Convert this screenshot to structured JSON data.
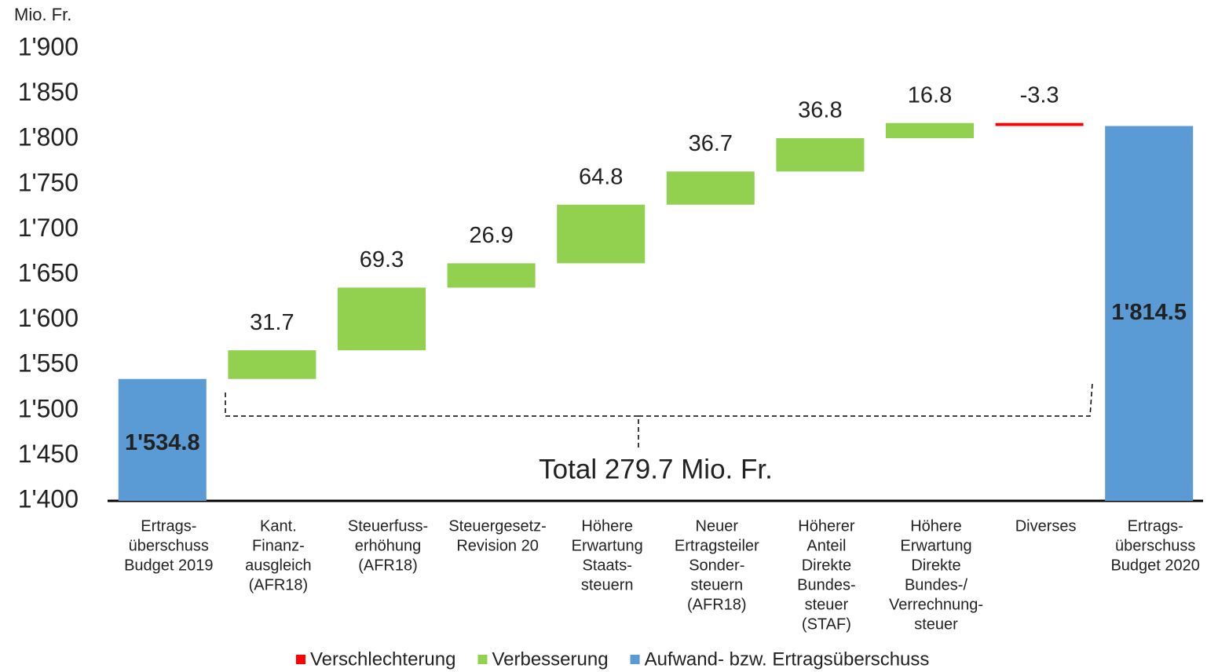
{
  "chart_data": {
    "type": "waterfall",
    "y_unit": "Mio. Fr.",
    "categories": [
      [
        "Ertrags-",
        "überschuss",
        "Budget 2019"
      ],
      [
        "Kant.",
        "Finanz-",
        "ausgleich",
        "(AFR18)"
      ],
      [
        "Steuerfuss-",
        "erhöhung",
        "(AFR18)"
      ],
      [
        "Steuergesetz-",
        "Revision 20"
      ],
      [
        "Höhere",
        "Erwartung",
        "Staats-",
        "steuern"
      ],
      [
        "Neuer",
        "Ertragsteiler",
        "Sonder-",
        "steuern",
        "(AFR18)"
      ],
      [
        "Höherer",
        "Anteil",
        "Direkte",
        "Bundes-",
        "steuer",
        "(STAF)"
      ],
      [
        "Höhere",
        "Erwartung",
        "Direkte",
        "Bundes-/",
        "Verrechnung-",
        "steuer"
      ],
      [
        "Diverses"
      ],
      [
        "Ertrags-",
        "überschuss",
        "Budget 2020"
      ]
    ],
    "values": [
      1534.8,
      31.7,
      69.3,
      26.9,
      64.8,
      36.7,
      36.8,
      16.8,
      -3.3,
      1814.5
    ],
    "value_labels": [
      "1'534.8",
      "31.7",
      "69.3",
      "26.9",
      "64.8",
      "36.7",
      "36.8",
      "16.8",
      "-3.3",
      "1'814.5"
    ],
    "legend": [
      {
        "name": "Verschlechterung",
        "color": "#ff0000"
      },
      {
        "name": "Verbesserung",
        "color": "#92d050"
      },
      {
        "name": "Aufwand- bzw. Ertragsüberschuss",
        "color": "#5b9bd5"
      }
    ],
    "annotation": "Total 279.7 Mio. Fr.",
    "ylim": [
      1400,
      1900
    ],
    "yticks": [
      {
        "value": 1400,
        "label": "1'400"
      },
      {
        "value": 1450,
        "label": "1'450"
      },
      {
        "value": 1500,
        "label": "1'500"
      },
      {
        "value": 1550,
        "label": "1'550"
      },
      {
        "value": 1600,
        "label": "1'600"
      },
      {
        "value": 1650,
        "label": "1'650"
      },
      {
        "value": 1700,
        "label": "1'700"
      },
      {
        "value": 1750,
        "label": "1'750"
      },
      {
        "value": 1800,
        "label": "1'800"
      },
      {
        "value": 1850,
        "label": "1'850"
      },
      {
        "value": 1900,
        "label": "1'900"
      }
    ],
    "grid": false,
    "legend_position": "bottom"
  }
}
